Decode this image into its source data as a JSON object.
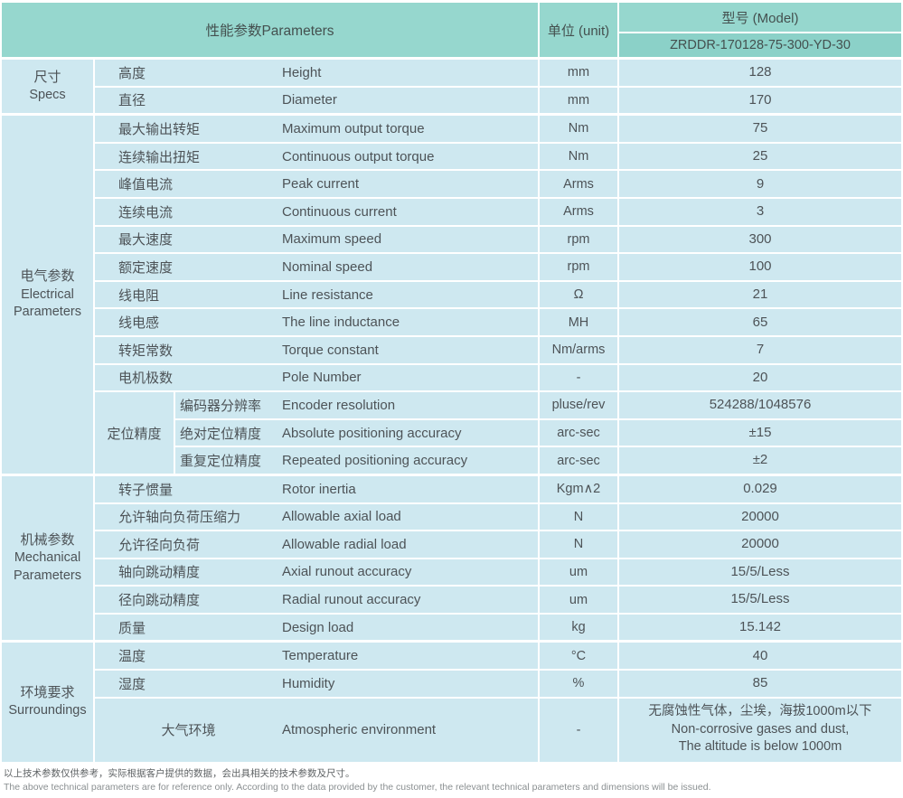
{
  "header": {
    "params_label": "性能参数Parameters",
    "unit_label": "单位 (unit)",
    "model_label": "型号 (Model)",
    "model_value": "ZRDDR-170128-75-300-YD-30"
  },
  "sections": [
    {
      "group": {
        "cn": "尺寸",
        "en": "Specs"
      },
      "rows": [
        {
          "cn": "高度",
          "en": "Height",
          "unit": "mm",
          "value": "128"
        },
        {
          "cn": "直径",
          "en": "Diameter",
          "unit": "mm",
          "value": "170"
        }
      ]
    },
    {
      "group": {
        "cn": "电气参数",
        "en": "Electrical Parameters"
      },
      "rows": [
        {
          "cn": "最大输出转矩",
          "en": "Maximum output torque",
          "unit": "Nm",
          "value": "75"
        },
        {
          "cn": "连续输出扭矩",
          "en": "Continuous output torque",
          "unit": "Nm",
          "value": "25"
        },
        {
          "cn": "峰值电流",
          "en": "Peak current",
          "unit": "Arms",
          "value": "9"
        },
        {
          "cn": "连续电流",
          "en": "Continuous current",
          "unit": "Arms",
          "value": "3"
        },
        {
          "cn": "最大速度",
          "en": "Maximum speed",
          "unit": "rpm",
          "value": "300"
        },
        {
          "cn": "额定速度",
          "en": "Nominal speed",
          "unit": "rpm",
          "value": "100"
        },
        {
          "cn": "线电阻",
          "en": "Line resistance",
          "unit": "Ω",
          "value": "21"
        },
        {
          "cn": "线电感",
          "en": "The line inductance",
          "unit": "MH",
          "value": "65"
        },
        {
          "cn": "转矩常数",
          "en": "Torque constant",
          "unit": "Nm/arms",
          "value": "7"
        },
        {
          "cn": "电机极数",
          "en": "Pole Number",
          "unit": "-",
          "value": "20"
        }
      ],
      "subgroup": {
        "label": "定位精度",
        "rows": [
          {
            "cn": "编码器分辨率",
            "en": "Encoder resolution",
            "unit": "pluse/rev",
            "value": "524288/1048576"
          },
          {
            "cn": "绝对定位精度",
            "en": "Absolute positioning accuracy",
            "unit": "arc-sec",
            "value": "±15"
          },
          {
            "cn": "重复定位精度",
            "en": "Repeated positioning accuracy",
            "unit": "arc-sec",
            "value": "±2"
          }
        ]
      }
    },
    {
      "group": {
        "cn": "机械参数",
        "en": "Mechanical Parameters"
      },
      "rows": [
        {
          "cn": "转子惯量",
          "en": "Rotor inertia",
          "unit": "Kgm∧2",
          "value": "0.029"
        },
        {
          "cn": "允许轴向负荷压缩力",
          "en": "Allowable axial load",
          "unit": "N",
          "value": "20000"
        },
        {
          "cn": "允许径向负荷",
          "en": "Allowable radial load",
          "unit": "N",
          "value": "20000"
        },
        {
          "cn": "轴向跳动精度",
          "en": "Axial runout accuracy",
          "unit": "um",
          "value": "15/5/Less"
        },
        {
          "cn": "径向跳动精度",
          "en": "Radial runout accuracy",
          "unit": "um",
          "value": "15/5/Less"
        },
        {
          "cn": "质量",
          "en": "Design load",
          "unit": "kg",
          "value": "15.142"
        }
      ]
    },
    {
      "group": {
        "cn": "环境要求",
        "en": "Surroundings"
      },
      "rows": [
        {
          "cn": "温度",
          "en": "Temperature",
          "unit": "°C",
          "value": "40"
        },
        {
          "cn": "湿度",
          "en": "Humidity",
          "unit": "%",
          "value": "85"
        },
        {
          "cn": "大气环境",
          "en": "Atmospheric environment",
          "unit": "-",
          "center_cn": true,
          "tall": true,
          "value_lines": [
            "无腐蚀性气体，尘埃，海拔1000m以下",
            "Non-corrosive gases and dust,",
            "The altitude is below 1000m"
          ]
        }
      ]
    }
  ],
  "notes": {
    "cn": "以上技术参数仅供参考，实际根据客户提供的数据，会出具相关的技术参数及尺寸。",
    "en": "The above technical parameters are for reference only. According to the data provided by the customer, the relevant technical parameters and dimensions will be issued."
  }
}
